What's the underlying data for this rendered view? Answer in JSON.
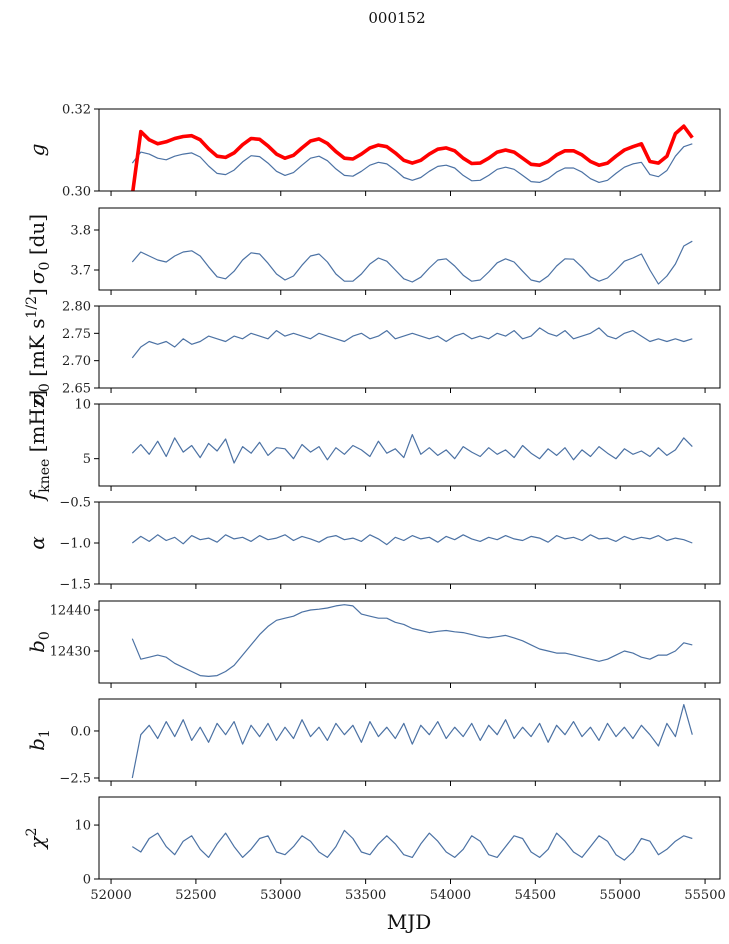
{
  "chart_data": {
    "type": "line",
    "title": "000152",
    "xlabel": "MJD",
    "xlim": [
      51929,
      55588
    ],
    "xticks": [
      52000,
      52500,
      53000,
      53500,
      54000,
      54500,
      55000,
      55500
    ],
    "xticklabels": [
      "52000",
      "52500",
      "53000",
      "53500",
      "54000",
      "54500",
      "55000",
      "55500"
    ],
    "series_color": "#4c72a4",
    "highlight_color": "#ff0000",
    "x": [
      52125,
      52175,
      52225,
      52275,
      52325,
      52375,
      52425,
      52475,
      52525,
      52575,
      52625,
      52675,
      52725,
      52775,
      52825,
      52875,
      52925,
      52975,
      53025,
      53075,
      53125,
      53175,
      53225,
      53275,
      53325,
      53375,
      53425,
      53475,
      53525,
      53575,
      53625,
      53675,
      53725,
      53775,
      53825,
      53875,
      53925,
      53975,
      54025,
      54075,
      54125,
      54175,
      54225,
      54275,
      54325,
      54375,
      54425,
      54475,
      54525,
      54575,
      54625,
      54675,
      54725,
      54775,
      54825,
      54875,
      54925,
      54975,
      55025,
      55075,
      55125,
      55175,
      55225,
      55275,
      55325,
      55375,
      55425
    ],
    "panels": [
      {
        "id": "g",
        "ylabel": [
          {
            "t": "g",
            "s": "it"
          }
        ],
        "ylim": [
          0.3,
          0.32
        ],
        "yticks": [
          0.3,
          0.32
        ],
        "yticklabels": [
          "0.30",
          "0.32"
        ],
        "series": [
          {
            "name": "g",
            "color": "#4c72a4",
            "values": [
              0.3068,
              0.3095,
              0.309,
              0.308,
              0.3076,
              0.3085,
              0.309,
              0.3093,
              0.3083,
              0.3061,
              0.3043,
              0.304,
              0.3051,
              0.3071,
              0.3086,
              0.3084,
              0.3068,
              0.3048,
              0.3038,
              0.3045,
              0.3063,
              0.308,
              0.3085,
              0.3074,
              0.3054,
              0.3038,
              0.3036,
              0.3048,
              0.3063,
              0.307,
              0.3066,
              0.3051,
              0.3033,
              0.3026,
              0.3033,
              0.3048,
              0.306,
              0.3063,
              0.3056,
              0.3038,
              0.3025,
              0.3026,
              0.3038,
              0.3053,
              0.3058,
              0.3053,
              0.3038,
              0.3023,
              0.3021,
              0.303,
              0.3046,
              0.3056,
              0.3056,
              0.3046,
              0.303,
              0.3021,
              0.3026,
              0.3043,
              0.3058,
              0.3066,
              0.307,
              0.304,
              0.3035,
              0.305,
              0.3085,
              0.3108,
              0.3115
            ]
          },
          {
            "name": "g_model",
            "color": "#ff0000",
            "thick": true,
            "values": [
              0.299,
              0.3145,
              0.3125,
              0.3115,
              0.312,
              0.3128,
              0.3133,
              0.3135,
              0.3125,
              0.3103,
              0.3085,
              0.3082,
              0.3093,
              0.3113,
              0.3128,
              0.3126,
              0.311,
              0.309,
              0.308,
              0.3087,
              0.3105,
              0.3122,
              0.3127,
              0.3116,
              0.3096,
              0.308,
              0.3078,
              0.309,
              0.3105,
              0.3112,
              0.3108,
              0.3093,
              0.3075,
              0.3068,
              0.3075,
              0.309,
              0.3102,
              0.3105,
              0.3098,
              0.308,
              0.3067,
              0.3068,
              0.308,
              0.3095,
              0.31,
              0.3095,
              0.308,
              0.3065,
              0.3063,
              0.3072,
              0.3088,
              0.3098,
              0.3098,
              0.3088,
              0.3072,
              0.3063,
              0.3068,
              0.3085,
              0.31,
              0.3108,
              0.3115,
              0.3072,
              0.3068,
              0.3085,
              0.314,
              0.3158,
              0.313
            ]
          }
        ]
      },
      {
        "id": "sigma0_du",
        "ylabel": [
          {
            "t": "σ",
            "s": "it"
          },
          {
            "t": "0",
            "s": "sub"
          },
          {
            "t": " [du]",
            "s": ""
          }
        ],
        "ylim": [
          3.65,
          3.855
        ],
        "yticks": [
          3.7,
          3.8
        ],
        "yticklabels": [
          "3.7",
          "3.8"
        ],
        "series": [
          {
            "name": "sigma0_du",
            "color": "#4c72a4",
            "values": [
              3.72,
              3.745,
              3.735,
              3.725,
              3.72,
              3.735,
              3.745,
              3.748,
              3.735,
              3.708,
              3.683,
              3.678,
              3.697,
              3.725,
              3.743,
              3.74,
              3.717,
              3.69,
              3.675,
              3.685,
              3.712,
              3.735,
              3.74,
              3.72,
              3.69,
              3.672,
              3.672,
              3.69,
              3.715,
              3.73,
              3.722,
              3.7,
              3.678,
              3.67,
              3.682,
              3.705,
              3.725,
              3.728,
              3.71,
              3.687,
              3.672,
              3.675,
              3.695,
              3.718,
              3.728,
              3.72,
              3.697,
              3.675,
              3.67,
              3.685,
              3.71,
              3.728,
              3.727,
              3.707,
              3.683,
              3.672,
              3.68,
              3.7,
              3.722,
              3.73,
              3.74,
              3.7,
              3.665,
              3.685,
              3.715,
              3.76,
              3.772
            ]
          }
        ]
      },
      {
        "id": "sigma0_mK",
        "ylabel": [
          {
            "t": "σ",
            "s": "it"
          },
          {
            "t": "0",
            "s": "sub"
          },
          {
            "t": " [mK s",
            "s": ""
          },
          {
            "t": "1/2",
            "s": "sup"
          },
          {
            "t": "]",
            "s": ""
          }
        ],
        "ylim": [
          2.65,
          2.8
        ],
        "yticks": [
          2.65,
          2.7,
          2.75,
          2.8
        ],
        "yticklabels": [
          "2.65",
          "2.70",
          "2.75",
          "2.80"
        ],
        "series": [
          {
            "name": "sigma0_mK",
            "color": "#4c72a4",
            "values": [
              2.705,
              2.725,
              2.735,
              2.73,
              2.735,
              2.725,
              2.74,
              2.73,
              2.735,
              2.745,
              2.74,
              2.735,
              2.745,
              2.74,
              2.75,
              2.745,
              2.74,
              2.755,
              2.745,
              2.75,
              2.745,
              2.74,
              2.75,
              2.745,
              2.74,
              2.735,
              2.745,
              2.75,
              2.74,
              2.745,
              2.755,
              2.74,
              2.745,
              2.75,
              2.745,
              2.74,
              2.745,
              2.735,
              2.745,
              2.75,
              2.74,
              2.745,
              2.74,
              2.75,
              2.745,
              2.755,
              2.74,
              2.745,
              2.76,
              2.75,
              2.745,
              2.755,
              2.74,
              2.745,
              2.75,
              2.76,
              2.745,
              2.74,
              2.75,
              2.755,
              2.745,
              2.735,
              2.74,
              2.735,
              2.74,
              2.735,
              2.74
            ]
          }
        ]
      },
      {
        "id": "fknee",
        "ylabel": [
          {
            "t": "f",
            "s": "it"
          },
          {
            "t": "knee",
            "s": "sub"
          },
          {
            "t": " [mHz]",
            "s": ""
          }
        ],
        "ylim": [
          2.5,
          10
        ],
        "yticks": [
          5,
          10
        ],
        "yticklabels": [
          "5",
          "10"
        ],
        "series": [
          {
            "name": "fknee",
            "color": "#4c72a4",
            "values": [
              5.5,
              6.3,
              5.4,
              6.6,
              5.2,
              6.9,
              5.6,
              6.2,
              5.1,
              6.4,
              5.7,
              6.8,
              4.6,
              6.1,
              5.5,
              6.5,
              5.3,
              6.0,
              5.9,
              5.0,
              6.3,
              5.6,
              6.1,
              4.9,
              6.0,
              5.4,
              6.2,
              5.8,
              5.2,
              6.6,
              5.5,
              5.9,
              5.1,
              7.2,
              5.4,
              6.0,
              5.3,
              5.8,
              5.0,
              6.1,
              5.6,
              5.2,
              6.0,
              5.4,
              5.8,
              5.1,
              6.2,
              5.5,
              5.0,
              5.9,
              5.3,
              6.0,
              4.9,
              5.8,
              5.2,
              6.1,
              5.5,
              5.0,
              5.9,
              5.4,
              5.7,
              5.2,
              6.0,
              5.3,
              5.8,
              6.9,
              6.1
            ]
          }
        ]
      },
      {
        "id": "alpha",
        "ylabel": [
          {
            "t": "α",
            "s": "it"
          }
        ],
        "ylim": [
          -1.5,
          -0.5
        ],
        "yticks": [
          -1.5,
          -1.0,
          -0.5
        ],
        "yticklabels": [
          "−1.5",
          "−1.0",
          "−0.5"
        ],
        "series": [
          {
            "name": "alpha",
            "color": "#4c72a4",
            "values": [
              -1.0,
              -0.92,
              -0.98,
              -0.9,
              -0.97,
              -0.93,
              -1.01,
              -0.91,
              -0.96,
              -0.94,
              -0.99,
              -0.9,
              -0.95,
              -0.93,
              -0.98,
              -0.91,
              -0.96,
              -0.94,
              -0.9,
              -0.97,
              -0.92,
              -0.95,
              -0.99,
              -0.93,
              -0.91,
              -0.96,
              -0.94,
              -0.98,
              -0.9,
              -0.95,
              -1.02,
              -0.93,
              -0.97,
              -0.91,
              -0.95,
              -0.93,
              -0.99,
              -0.92,
              -0.96,
              -0.9,
              -0.95,
              -0.98,
              -0.93,
              -0.96,
              -0.91,
              -0.95,
              -0.97,
              -0.92,
              -0.94,
              -0.99,
              -0.91,
              -0.95,
              -0.93,
              -0.97,
              -0.9,
              -0.95,
              -0.94,
              -0.98,
              -0.92,
              -0.96,
              -0.93,
              -0.95,
              -0.91,
              -0.97,
              -0.94,
              -0.96,
              -1.0
            ]
          }
        ]
      },
      {
        "id": "b0",
        "ylabel": [
          {
            "t": "b",
            "s": "it"
          },
          {
            "t": "0",
            "s": "sub"
          }
        ],
        "ylim": [
          12422.2,
          12442.2
        ],
        "yticks": [
          12430,
          12440
        ],
        "yticklabels": [
          "12430",
          "12440"
        ],
        "series": [
          {
            "name": "b0",
            "color": "#4c72a4",
            "values": [
              12433,
              12428,
              12428.5,
              12429,
              12428.5,
              12427,
              12426,
              12425,
              12424,
              12423.8,
              12424,
              12425,
              12426.5,
              12429,
              12431.5,
              12434,
              12436,
              12437.5,
              12438,
              12438.5,
              12439.5,
              12440,
              12440.2,
              12440.5,
              12441,
              12441.3,
              12441,
              12439,
              12438.5,
              12438,
              12438,
              12437,
              12436.5,
              12435.5,
              12435,
              12434.5,
              12434.8,
              12435,
              12434.7,
              12434.5,
              12434,
              12433.5,
              12433.2,
              12433.5,
              12433.8,
              12433.2,
              12432.5,
              12431.5,
              12430.5,
              12430,
              12429.5,
              12429.5,
              12429,
              12428.5,
              12428,
              12427.5,
              12428,
              12429,
              12430,
              12429.5,
              12428.5,
              12428,
              12429,
              12429,
              12430,
              12432,
              12431.5
            ]
          }
        ]
      },
      {
        "id": "b1",
        "ylabel": [
          {
            "t": "b",
            "s": "it"
          },
          {
            "t": "1",
            "s": "sub"
          }
        ],
        "ylim": [
          -2.66,
          1.7
        ],
        "yticks": [
          -2.5,
          0.0
        ],
        "yticklabels": [
          "−2.5",
          "0.0"
        ],
        "series": [
          {
            "name": "b1",
            "color": "#4c72a4",
            "values": [
              -2.5,
              -0.2,
              0.3,
              -0.4,
              0.5,
              -0.3,
              0.6,
              -0.5,
              0.2,
              -0.6,
              0.4,
              -0.2,
              0.5,
              -0.7,
              0.3,
              -0.3,
              0.4,
              -0.5,
              0.2,
              -0.4,
              0.6,
              -0.3,
              0.2,
              -0.5,
              0.4,
              -0.2,
              0.3,
              -0.6,
              0.5,
              -0.3,
              0.2,
              -0.4,
              0.4,
              -0.7,
              0.3,
              -0.2,
              0.5,
              -0.4,
              0.2,
              -0.3,
              0.4,
              -0.5,
              0.3,
              -0.2,
              0.6,
              -0.4,
              0.2,
              -0.3,
              0.4,
              -0.6,
              0.3,
              -0.2,
              0.5,
              -0.3,
              0.2,
              -0.5,
              0.4,
              -0.3,
              0.2,
              -0.4,
              0.3,
              -0.2,
              -0.8,
              0.4,
              -0.3,
              1.4,
              -0.2
            ]
          }
        ]
      },
      {
        "id": "chi2",
        "ylabel": [
          {
            "t": "χ",
            "s": "it"
          },
          {
            "t": "2",
            "s": "sup"
          }
        ],
        "ylim": [
          0,
          15.2
        ],
        "yticks": [
          0,
          10
        ],
        "yticklabels": [
          "0",
          "10"
        ],
        "series": [
          {
            "name": "chi2",
            "color": "#4c72a4",
            "values": [
              6,
              5,
              7.5,
              8.5,
              6,
              4.5,
              7,
              8,
              5.5,
              4,
              6.5,
              8.5,
              6,
              4,
              5.5,
              7.5,
              8,
              5,
              4.5,
              6,
              8,
              7,
              5,
              4,
              6,
              9,
              7.5,
              5,
              4.5,
              6.5,
              8,
              6.5,
              4.5,
              4,
              6.5,
              8.5,
              7,
              5,
              4,
              5.5,
              8,
              7,
              4.5,
              4,
              6,
              8,
              7.5,
              5,
              4,
              5.5,
              8.5,
              7,
              5,
              4,
              6,
              8,
              7,
              4.5,
              3.5,
              5,
              7.5,
              7,
              4.5,
              5.5,
              7,
              8,
              7.5
            ]
          }
        ]
      }
    ]
  }
}
